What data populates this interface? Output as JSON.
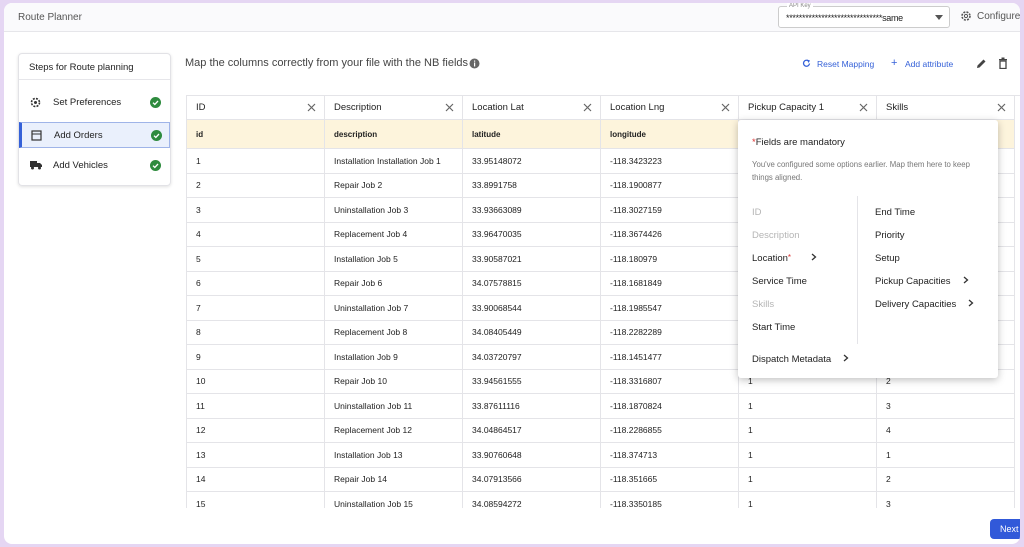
{
  "header": {
    "title": "Route Planner",
    "api_key_label": "API Key",
    "api_key_value": "******************************same",
    "configure": "Configure"
  },
  "sidebar": {
    "title": "Steps for Route planning",
    "steps": [
      "Set Preferences",
      "Add Orders",
      "Add Vehicles"
    ]
  },
  "main": {
    "instruction": "Map the columns correctly from your file with the NB fields",
    "reset_mapping": "Reset Mapping",
    "add_attribute": "Add attribute"
  },
  "table": {
    "columns": [
      "ID",
      "Description",
      "Location Lat",
      "Location Lng",
      "Pickup Capacity 1",
      "Skills"
    ],
    "mapping": [
      "id",
      "description",
      "latitude",
      "longitude"
    ],
    "rows": [
      [
        "1",
        "Installation Installation Job 1",
        "33.95148072",
        "-118.3423223"
      ],
      [
        "2",
        "Repair Job 2",
        "33.8991758",
        "-118.1900877"
      ],
      [
        "3",
        "Uninstallation Job 3",
        "33.93663089",
        "-118.3027159"
      ],
      [
        "4",
        "Replacement Job 4",
        "33.96470035",
        "-118.3674426"
      ],
      [
        "5",
        "Installation Job 5",
        "33.90587021",
        "-118.180979"
      ],
      [
        "6",
        "Repair Job 6",
        "34.07578815",
        "-118.1681849"
      ],
      [
        "7",
        "Uninstallation Job 7",
        "33.90068544",
        "-118.1985547"
      ],
      [
        "8",
        "Replacement Job 8",
        "34.08405449",
        "-118.2282289"
      ],
      [
        "9",
        "Installation Job 9",
        "34.03720797",
        "-118.1451477"
      ],
      [
        "10",
        "Repair Job 10",
        "33.94561555",
        "-118.3316807",
        "1",
        "2"
      ],
      [
        "11",
        "Uninstallation Job 11",
        "33.87611116",
        "-118.1870824",
        "1",
        "3"
      ],
      [
        "12",
        "Replacement Job 12",
        "34.04864517",
        "-118.2286855",
        "1",
        "4"
      ],
      [
        "13",
        "Installation Job 13",
        "33.90760648",
        "-118.374713",
        "1",
        "1"
      ],
      [
        "14",
        "Repair Job 14",
        "34.07913566",
        "-118.351665",
        "1",
        "2"
      ],
      [
        "15",
        "Uninstallation Job 15",
        "34.08594272",
        "-118.3350185",
        "1",
        "3"
      ]
    ]
  },
  "popup": {
    "mark": "*",
    "mandatory_text": "Fields are mandatory",
    "note": "You've configured some options earlier. Map them here to keep things aligned.",
    "left": [
      {
        "label": "ID",
        "enabled": false
      },
      {
        "label": "Description",
        "enabled": false
      },
      {
        "label": "Location",
        "enabled": true,
        "mandatory": true,
        "submenu": true
      },
      {
        "label": "Service Time",
        "enabled": true
      },
      {
        "label": "Skills",
        "enabled": false
      },
      {
        "label": "Start Time",
        "enabled": true
      }
    ],
    "right": [
      {
        "label": "End Time",
        "enabled": true
      },
      {
        "label": "Priority",
        "enabled": true
      },
      {
        "label": "Setup",
        "enabled": true
      },
      {
        "label": "Pickup Capacities",
        "enabled": true,
        "submenu": true
      },
      {
        "label": "Delivery Capacities",
        "enabled": true,
        "submenu": true
      }
    ],
    "bottom": {
      "label": "Dispatch Metadata",
      "enabled": true,
      "submenu": true
    }
  },
  "footer": {
    "next": "Next"
  }
}
